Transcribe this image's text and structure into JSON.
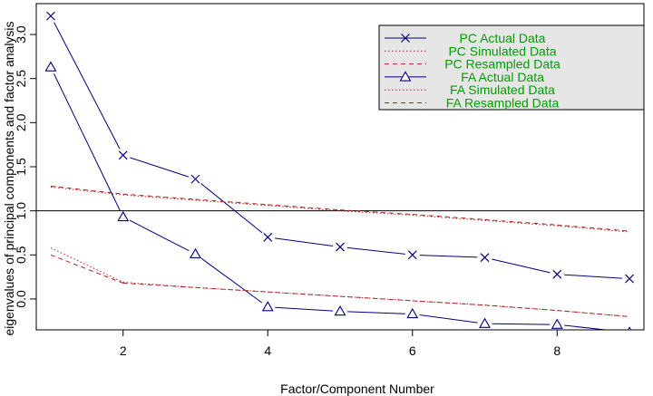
{
  "chart_data": {
    "type": "line",
    "xlabel": "Factor/Component Number",
    "ylabel": "eigenvalues of principal components and factor analysis",
    "xlim": [
      0.8,
      9.2
    ],
    "ylim": [
      -0.35,
      3.35
    ],
    "x_ticks": [
      2,
      4,
      6,
      8
    ],
    "y_ticks": [
      0.0,
      0.5,
      1.0,
      1.5,
      2.0,
      2.5,
      3.0
    ],
    "x_tick_labels": [
      "2",
      "4",
      "6",
      "8"
    ],
    "y_tick_labels": [
      "0.0",
      "0.5",
      "1.0",
      "1.5",
      "2.0",
      "2.5",
      "3.0"
    ],
    "reference_line": 1.0,
    "grid": false,
    "legend_position": "top-right",
    "x": [
      1,
      2,
      3,
      4,
      5,
      6,
      7,
      8,
      9
    ],
    "series": [
      {
        "name": "PC  Actual Data",
        "color": "#000080",
        "style": "solid",
        "marker": "x",
        "values": [
          3.21,
          1.63,
          1.36,
          0.7,
          0.59,
          0.5,
          0.47,
          0.28,
          0.23
        ]
      },
      {
        "name": "PC  Simulated Data",
        "color": "#B22222",
        "style": "dotted",
        "marker": "none",
        "values": [
          1.27,
          1.18,
          1.12,
          1.06,
          1.0,
          0.95,
          0.89,
          0.83,
          0.76
        ]
      },
      {
        "name": "PC  Resampled Data",
        "color": "#B22222",
        "style": "dashed",
        "marker": "none",
        "values": [
          1.28,
          1.19,
          1.13,
          1.07,
          1.01,
          0.96,
          0.9,
          0.84,
          0.77
        ]
      },
      {
        "name": "FA  Actual Data",
        "color": "#000080",
        "style": "solid",
        "marker": "triangle",
        "values": [
          2.63,
          0.93,
          0.51,
          -0.09,
          -0.14,
          -0.17,
          -0.28,
          -0.29,
          -0.38
        ]
      },
      {
        "name": "FA  Simulated Data",
        "color": "#B22222",
        "style": "dotted",
        "marker": "none",
        "values": [
          0.58,
          0.19,
          0.13,
          0.08,
          0.03,
          -0.02,
          -0.07,
          -0.13,
          -0.2
        ]
      },
      {
        "name": "FA  Resampled Data",
        "color": "#B22222",
        "style": "dashed",
        "marker": "none",
        "values": [
          0.5,
          0.18,
          0.13,
          0.08,
          0.03,
          -0.02,
          -0.07,
          -0.13,
          -0.2
        ]
      }
    ],
    "legend_text_color": "#00A000",
    "legend_background": "#E6E6E6"
  }
}
